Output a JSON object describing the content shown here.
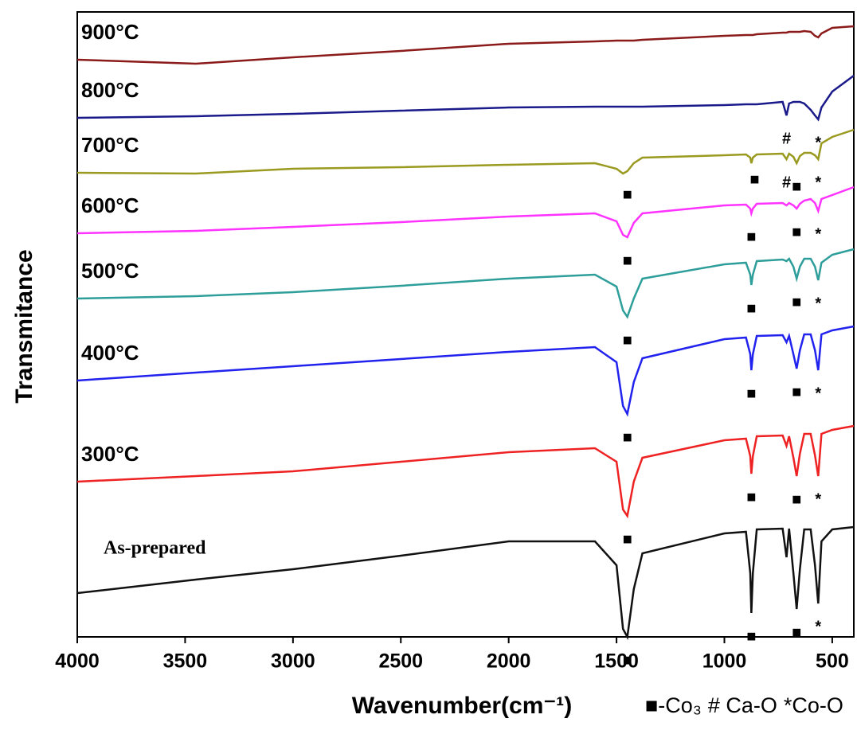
{
  "chart_data": {
    "type": "line",
    "x_label": "Wavenumber(cm⁻¹)",
    "y_label": "Transmitance",
    "marker_legend": [
      "■-Co₃",
      "# Ca-O",
      "*Co-O"
    ],
    "xlim": [
      4000,
      400
    ],
    "xticks": [
      4000,
      3500,
      3000,
      2500,
      2000,
      1500,
      1000,
      500
    ],
    "ylim": [
      0,
      785
    ],
    "x": [
      4000,
      3450,
      3000,
      2500,
      2000,
      1600,
      1500,
      1470,
      1450,
      1420,
      1380,
      1000,
      900,
      880,
      875,
      868,
      850,
      730,
      712,
      700,
      680,
      665,
      650,
      630,
      600,
      580,
      565,
      550,
      500,
      400
    ],
    "series": [
      {
        "name": "900°C",
        "color": "#8b1a1a",
        "values": [
          725,
          720,
          728,
          736,
          745,
          748,
          749,
          749,
          749,
          749,
          750,
          755,
          756,
          756,
          756,
          756,
          757,
          759,
          759,
          760,
          760,
          760,
          760,
          761,
          760,
          755,
          753,
          758,
          765,
          767
        ],
        "peak_labels": []
      },
      {
        "name": "800°C",
        "color": "#1a1a8b",
        "values": [
          652,
          654,
          657,
          661,
          665,
          666,
          666,
          666,
          666,
          666,
          666,
          668,
          669,
          669,
          669,
          669,
          669,
          672,
          655,
          670,
          672,
          672,
          672,
          670,
          662,
          655,
          650,
          665,
          685,
          705
        ],
        "peak_labels": [
          {
            "x": 712,
            "label": "#"
          },
          {
            "x": 565,
            "label": "*"
          }
        ]
      },
      {
        "name": "700°C",
        "color": "#9a9a20",
        "values": [
          583,
          582,
          588,
          590,
          593,
          595,
          588,
          582,
          585,
          595,
          602,
          605,
          606,
          602,
          595,
          602,
          606,
          607,
          600,
          607,
          603,
          595,
          604,
          608,
          608,
          605,
          600,
          620,
          628,
          637
        ],
        "peak_labels": [
          {
            "x": 1450,
            "label": "■"
          },
          {
            "x": 860,
            "label": "■"
          },
          {
            "x": 712,
            "label": "#"
          },
          {
            "x": 665,
            "label": "■"
          },
          {
            "x": 565,
            "label": "*"
          }
        ]
      },
      {
        "name": "600°C",
        "color": "#ff33ff",
        "values": [
          507,
          510,
          515,
          521,
          528,
          532,
          522,
          505,
          502,
          520,
          532,
          542,
          543,
          538,
          532,
          538,
          544,
          545,
          542,
          545,
          542,
          538,
          544,
          548,
          550,
          545,
          535,
          550,
          555,
          565
        ],
        "peak_labels": [
          {
            "x": 1450,
            "label": "■"
          },
          {
            "x": 875,
            "label": "■"
          },
          {
            "x": 665,
            "label": "■"
          },
          {
            "x": 565,
            "label": "*"
          }
        ]
      },
      {
        "name": "500°C",
        "color": "#2e9e9a",
        "values": [
          425,
          428,
          433,
          441,
          450,
          455,
          440,
          410,
          402,
          425,
          450,
          468,
          470,
          455,
          442,
          455,
          472,
          474,
          472,
          475,
          465,
          450,
          465,
          475,
          475,
          465,
          448,
          470,
          480,
          487
        ],
        "peak_labels": [
          {
            "x": 1450,
            "label": "■"
          },
          {
            "x": 875,
            "label": "■"
          },
          {
            "x": 665,
            "label": "■"
          },
          {
            "x": 565,
            "label": "*"
          }
        ]
      },
      {
        "name": "400°C",
        "color": "#2222ee",
        "values": [
          322,
          332,
          340,
          349,
          358,
          364,
          345,
          290,
          280,
          320,
          350,
          374,
          376,
          355,
          335,
          355,
          378,
          379,
          370,
          378,
          355,
          337,
          360,
          380,
          380,
          360,
          335,
          380,
          385,
          390
        ],
        "peak_labels": [
          {
            "x": 1450,
            "label": "■"
          },
          {
            "x": 875,
            "label": "■"
          },
          {
            "x": 665,
            "label": "■"
          },
          {
            "x": 565,
            "label": "*"
          }
        ]
      },
      {
        "name": "300°C",
        "color": "#ee2222",
        "values": [
          195,
          202,
          208,
          220,
          232,
          237,
          220,
          160,
          152,
          195,
          225,
          247,
          249,
          227,
          205,
          227,
          252,
          253,
          240,
          252,
          225,
          202,
          230,
          255,
          255,
          228,
          202,
          255,
          260,
          265
        ],
        "peak_labels": [
          {
            "x": 1450,
            "label": "■"
          },
          {
            "x": 875,
            "label": "■"
          },
          {
            "x": 665,
            "label": "■"
          },
          {
            "x": 565,
            "label": "*"
          }
        ]
      },
      {
        "name": "As-prepared",
        "color": "#111111",
        "values": [
          55,
          72,
          85,
          102,
          120,
          120,
          90,
          10,
          0,
          60,
          105,
          130,
          132,
          80,
          30,
          80,
          135,
          136,
          100,
          136,
          80,
          35,
          85,
          135,
          135,
          90,
          42,
          120,
          135,
          138
        ],
        "peak_labels": [
          {
            "x": 1450,
            "label": "■"
          },
          {
            "x": 875,
            "label": "■"
          },
          {
            "x": 665,
            "label": "■"
          },
          {
            "x": 565,
            "label": "*"
          }
        ]
      }
    ]
  }
}
